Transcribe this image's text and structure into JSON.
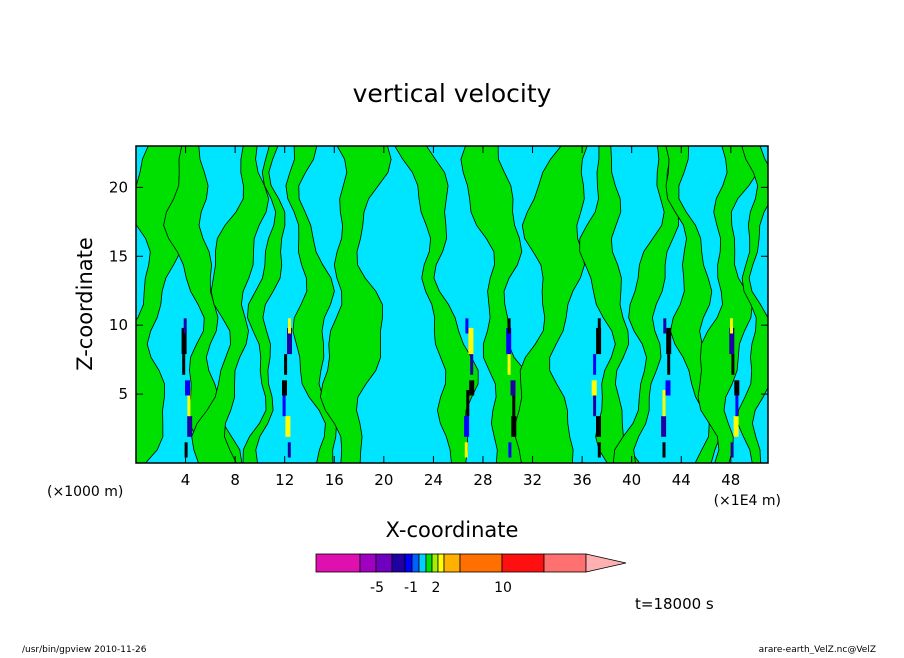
{
  "chart_data": {
    "type": "heatmap",
    "title": "vertical velocity",
    "xlabel": "X-coordinate",
    "ylabel": "Z-coordinate",
    "x_unit_left": "(×1000 m)",
    "x_unit_right": "(×1E4 m)",
    "x_ticks": [
      "4",
      "8",
      "12",
      "16",
      "20",
      "24",
      "28",
      "32",
      "36",
      "40",
      "44",
      "48"
    ],
    "y_ticks": [
      "5",
      "10",
      "15",
      "20"
    ],
    "xlim": [
      0,
      51
    ],
    "ylim": [
      0,
      23
    ],
    "background_color": "#00e5ff",
    "contour_color": "#00e000",
    "colorbar": {
      "colors": [
        "#e010b0",
        "#a000c0",
        "#7000c0",
        "#2000a0",
        "#0000ff",
        "#0060ff",
        "#00d0ff",
        "#00e000",
        "#a0f000",
        "#ffff00",
        "#ffb000",
        "#ff7000",
        "#ff1010",
        "#ff7070",
        "#ffb0b0"
      ],
      "labels": [
        "-5",
        "-1",
        "2",
        "10"
      ]
    },
    "time_label": "t=18000 s"
  },
  "footer": {
    "left": "/usr/bin/gpview   2010-11-26",
    "right": "arare-earth_VelZ.nc@VelZ"
  }
}
